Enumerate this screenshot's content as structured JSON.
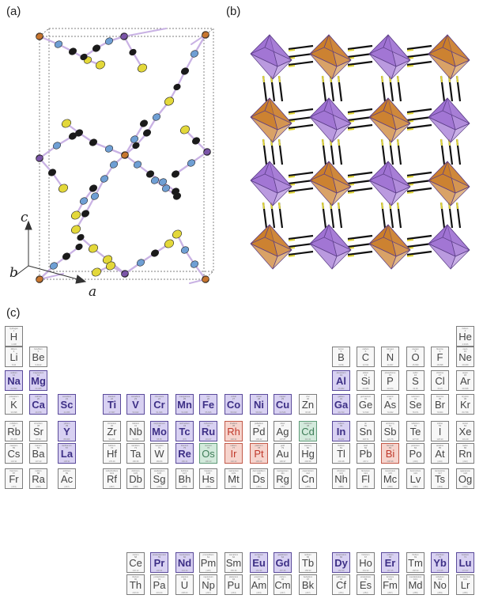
{
  "panels": {
    "a": {
      "label": "(a)",
      "axes": {
        "c": "c",
        "b": "b",
        "a": "a"
      }
    },
    "b": {
      "label": "(b)"
    },
    "c": {
      "label": "(c)"
    }
  },
  "colors": {
    "purple_atom": "#7b55a8",
    "orange_atom": "#c8762f",
    "blue_atom": "#6f9fd4",
    "black_atom": "#1a1a1a",
    "yellow_atom": "#e3d83a",
    "octahedron_purple": "#9d6fd2",
    "octahedron_orange": "#c97b26",
    "highlight": "#d8d1f2",
    "highlight_red": "#f6d4cd",
    "highlight_green": "#d3eadc"
  },
  "periodic_table": {
    "elements": [
      {
        "s": "H",
        "r": 1,
        "c": 1,
        "z": "1",
        "n": "hydrogen",
        "m": "1.008",
        "h": ""
      },
      {
        "s": "He",
        "r": 1,
        "c": 18,
        "z": "2",
        "n": "helium",
        "m": "4.0026",
        "h": ""
      },
      {
        "s": "Li",
        "r": 2,
        "c": 1,
        "z": "3",
        "n": "lithium",
        "m": "6.94",
        "h": ""
      },
      {
        "s": "Be",
        "r": 2,
        "c": 2,
        "z": "4",
        "n": "beryllium",
        "m": "9.0122",
        "h": ""
      },
      {
        "s": "B",
        "r": 2,
        "c": 13,
        "z": "5",
        "n": "boron",
        "m": "10.81",
        "h": ""
      },
      {
        "s": "C",
        "r": 2,
        "c": 14,
        "z": "6",
        "n": "carbon",
        "m": "12.011",
        "h": ""
      },
      {
        "s": "N",
        "r": 2,
        "c": 15,
        "z": "7",
        "n": "nitrogen",
        "m": "14.007",
        "h": ""
      },
      {
        "s": "O",
        "r": 2,
        "c": 16,
        "z": "8",
        "n": "oxygen",
        "m": "15.999",
        "h": ""
      },
      {
        "s": "F",
        "r": 2,
        "c": 17,
        "z": "9",
        "n": "fluorine",
        "m": "18.998",
        "h": ""
      },
      {
        "s": "Ne",
        "r": 2,
        "c": 18,
        "z": "10",
        "n": "neon",
        "m": "20.180",
        "h": ""
      },
      {
        "s": "Na",
        "r": 3,
        "c": 1,
        "z": "11",
        "n": "sodium",
        "m": "22.990",
        "h": "hl"
      },
      {
        "s": "Mg",
        "r": 3,
        "c": 2,
        "z": "12",
        "n": "magnesium",
        "m": "24.305",
        "h": "hl"
      },
      {
        "s": "Al",
        "r": 3,
        "c": 13,
        "z": "13",
        "n": "aluminium",
        "m": "26.982",
        "h": "hl"
      },
      {
        "s": "Si",
        "r": 3,
        "c": 14,
        "z": "14",
        "n": "silicon",
        "m": "28.085",
        "h": ""
      },
      {
        "s": "P",
        "r": 3,
        "c": 15,
        "z": "15",
        "n": "phosphorus",
        "m": "30.974",
        "h": ""
      },
      {
        "s": "S",
        "r": 3,
        "c": 16,
        "z": "16",
        "n": "sulfur",
        "m": "32.06",
        "h": ""
      },
      {
        "s": "Cl",
        "r": 3,
        "c": 17,
        "z": "17",
        "n": "chlorine",
        "m": "35.45",
        "h": ""
      },
      {
        "s": "Ar",
        "r": 3,
        "c": 18,
        "z": "18",
        "n": "argon",
        "m": "39.948",
        "h": ""
      },
      {
        "s": "K",
        "r": 4,
        "c": 1,
        "z": "19",
        "n": "potassium",
        "m": "39.098",
        "h": ""
      },
      {
        "s": "Ca",
        "r": 4,
        "c": 2,
        "z": "20",
        "n": "calcium",
        "m": "40.078",
        "h": "hl"
      },
      {
        "s": "Sc",
        "r": 4,
        "c": 3,
        "z": "21",
        "n": "scandium",
        "m": "44.956",
        "h": "hl"
      },
      {
        "s": "Ti",
        "r": 4,
        "c": 4,
        "z": "22",
        "n": "titanium",
        "m": "47.867",
        "h": "hl"
      },
      {
        "s": "V",
        "r": 4,
        "c": 5,
        "z": "23",
        "n": "vanadium",
        "m": "50.942",
        "h": "hl"
      },
      {
        "s": "Cr",
        "r": 4,
        "c": 6,
        "z": "24",
        "n": "chromium",
        "m": "51.996",
        "h": "hl"
      },
      {
        "s": "Mn",
        "r": 4,
        "c": 7,
        "z": "25",
        "n": "manganese",
        "m": "54.938",
        "h": "hl"
      },
      {
        "s": "Fe",
        "r": 4,
        "c": 8,
        "z": "26",
        "n": "iron",
        "m": "55.845",
        "h": "hl"
      },
      {
        "s": "Co",
        "r": 4,
        "c": 9,
        "z": "27",
        "n": "cobalt",
        "m": "58.933",
        "h": "hl"
      },
      {
        "s": "Ni",
        "r": 4,
        "c": 10,
        "z": "28",
        "n": "nickel",
        "m": "58.693",
        "h": "hl"
      },
      {
        "s": "Cu",
        "r": 4,
        "c": 11,
        "z": "29",
        "n": "copper",
        "m": "63.546",
        "h": "hl"
      },
      {
        "s": "Zn",
        "r": 4,
        "c": 12,
        "z": "30",
        "n": "zinc",
        "m": "65.38",
        "h": ""
      },
      {
        "s": "Ga",
        "r": 4,
        "c": 13,
        "z": "31",
        "n": "gallium",
        "m": "69.723",
        "h": "hl"
      },
      {
        "s": "Ge",
        "r": 4,
        "c": 14,
        "z": "32",
        "n": "germanium",
        "m": "72.630",
        "h": ""
      },
      {
        "s": "As",
        "r": 4,
        "c": 15,
        "z": "33",
        "n": "arsenic",
        "m": "74.922",
        "h": ""
      },
      {
        "s": "Se",
        "r": 4,
        "c": 16,
        "z": "34",
        "n": "selenium",
        "m": "78.971",
        "h": ""
      },
      {
        "s": "Br",
        "r": 4,
        "c": 17,
        "z": "35",
        "n": "bromine",
        "m": "79.904",
        "h": ""
      },
      {
        "s": "Kr",
        "r": 4,
        "c": 18,
        "z": "36",
        "n": "krypton",
        "m": "83.798",
        "h": ""
      },
      {
        "s": "Rb",
        "r": 5,
        "c": 1,
        "z": "37",
        "n": "rubidium",
        "m": "85.468",
        "h": ""
      },
      {
        "s": "Sr",
        "r": 5,
        "c": 2,
        "z": "38",
        "n": "strontium",
        "m": "87.62",
        "h": ""
      },
      {
        "s": "Y",
        "r": 5,
        "c": 3,
        "z": "39",
        "n": "yttrium",
        "m": "88.906",
        "h": "hl"
      },
      {
        "s": "Zr",
        "r": 5,
        "c": 4,
        "z": "40",
        "n": "zirconium",
        "m": "91.224",
        "h": ""
      },
      {
        "s": "Nb",
        "r": 5,
        "c": 5,
        "z": "41",
        "n": "niobium",
        "m": "92.906",
        "h": ""
      },
      {
        "s": "Mo",
        "r": 5,
        "c": 6,
        "z": "42",
        "n": "molybdenum",
        "m": "95.95",
        "h": "hl"
      },
      {
        "s": "Tc",
        "r": 5,
        "c": 7,
        "z": "43",
        "n": "technetium",
        "m": "[97]",
        "h": "hl"
      },
      {
        "s": "Ru",
        "r": 5,
        "c": 8,
        "z": "44",
        "n": "ruthenium",
        "m": "101.07",
        "h": "hl"
      },
      {
        "s": "Rh",
        "r": 5,
        "c": 9,
        "z": "45",
        "n": "rhodium",
        "m": "102.91",
        "h": "red"
      },
      {
        "s": "Pd",
        "r": 5,
        "c": 10,
        "z": "46",
        "n": "palladium",
        "m": "106.42",
        "h": ""
      },
      {
        "s": "Ag",
        "r": 5,
        "c": 11,
        "z": "47",
        "n": "silver",
        "m": "107.87",
        "h": ""
      },
      {
        "s": "Cd",
        "r": 5,
        "c": 12,
        "z": "48",
        "n": "cadmium",
        "m": "112.41",
        "h": "grn"
      },
      {
        "s": "In",
        "r": 5,
        "c": 13,
        "z": "49",
        "n": "indium",
        "m": "114.82",
        "h": "hl"
      },
      {
        "s": "Sn",
        "r": 5,
        "c": 14,
        "z": "50",
        "n": "tin",
        "m": "118.71",
        "h": ""
      },
      {
        "s": "Sb",
        "r": 5,
        "c": 15,
        "z": "51",
        "n": "antimony",
        "m": "121.76",
        "h": ""
      },
      {
        "s": "Te",
        "r": 5,
        "c": 16,
        "z": "52",
        "n": "tellurium",
        "m": "127.60",
        "h": ""
      },
      {
        "s": "I",
        "r": 5,
        "c": 17,
        "z": "53",
        "n": "iodine",
        "m": "126.90",
        "h": ""
      },
      {
        "s": "Xe",
        "r": 5,
        "c": 18,
        "z": "54",
        "n": "xenon",
        "m": "131.29",
        "h": ""
      },
      {
        "s": "Cs",
        "r": 6,
        "c": 1,
        "z": "55",
        "n": "caesium",
        "m": "132.91",
        "h": ""
      },
      {
        "s": "Ba",
        "r": 6,
        "c": 2,
        "z": "56",
        "n": "barium",
        "m": "137.33",
        "h": ""
      },
      {
        "s": "La",
        "r": 6,
        "c": 3,
        "z": "57",
        "n": "lanthanum",
        "m": "138.91",
        "h": "hl"
      },
      {
        "s": "Hf",
        "r": 6,
        "c": 4,
        "z": "72",
        "n": "hafnium",
        "m": "178.49",
        "h": ""
      },
      {
        "s": "Ta",
        "r": 6,
        "c": 5,
        "z": "73",
        "n": "tantalum",
        "m": "180.95",
        "h": ""
      },
      {
        "s": "W",
        "r": 6,
        "c": 6,
        "z": "74",
        "n": "tungsten",
        "m": "183.84",
        "h": ""
      },
      {
        "s": "Re",
        "r": 6,
        "c": 7,
        "z": "75",
        "n": "rhenium",
        "m": "186.21",
        "h": "hl"
      },
      {
        "s": "Os",
        "r": 6,
        "c": 8,
        "z": "76",
        "n": "osmium",
        "m": "190.23",
        "h": "grn"
      },
      {
        "s": "Ir",
        "r": 6,
        "c": 9,
        "z": "77",
        "n": "iridium",
        "m": "192.22",
        "h": "red"
      },
      {
        "s": "Pt",
        "r": 6,
        "c": 10,
        "z": "78",
        "n": "platinum",
        "m": "195.08",
        "h": "red"
      },
      {
        "s": "Au",
        "r": 6,
        "c": 11,
        "z": "79",
        "n": "gold",
        "m": "196.97",
        "h": ""
      },
      {
        "s": "Hg",
        "r": 6,
        "c": 12,
        "z": "80",
        "n": "mercury",
        "m": "200.59",
        "h": ""
      },
      {
        "s": "Tl",
        "r": 6,
        "c": 13,
        "z": "81",
        "n": "thallium",
        "m": "204.38",
        "h": ""
      },
      {
        "s": "Pb",
        "r": 6,
        "c": 14,
        "z": "82",
        "n": "lead",
        "m": "207.2",
        "h": ""
      },
      {
        "s": "Bi",
        "r": 6,
        "c": 15,
        "z": "83",
        "n": "bismuth",
        "m": "208.98",
        "h": "red"
      },
      {
        "s": "Po",
        "r": 6,
        "c": 16,
        "z": "84",
        "n": "polonium",
        "m": "[209]",
        "h": ""
      },
      {
        "s": "At",
        "r": 6,
        "c": 17,
        "z": "85",
        "n": "astatine",
        "m": "[210]",
        "h": ""
      },
      {
        "s": "Rn",
        "r": 6,
        "c": 18,
        "z": "86",
        "n": "radon",
        "m": "[222]",
        "h": ""
      },
      {
        "s": "Fr",
        "r": 7,
        "c": 1,
        "z": "87",
        "n": "francium",
        "m": "[223]",
        "h": ""
      },
      {
        "s": "Ra",
        "r": 7,
        "c": 2,
        "z": "88",
        "n": "radium",
        "m": "[226]",
        "h": ""
      },
      {
        "s": "Ac",
        "r": 7,
        "c": 3,
        "z": "89",
        "n": "actinium",
        "m": "[227]",
        "h": ""
      },
      {
        "s": "Rf",
        "r": 7,
        "c": 4,
        "z": "104",
        "n": "rutherfordium",
        "m": "[267]",
        "h": ""
      },
      {
        "s": "Db",
        "r": 7,
        "c": 5,
        "z": "105",
        "n": "dubnium",
        "m": "[268]",
        "h": ""
      },
      {
        "s": "Sg",
        "r": 7,
        "c": 6,
        "z": "106",
        "n": "seaborgium",
        "m": "[269]",
        "h": ""
      },
      {
        "s": "Bh",
        "r": 7,
        "c": 7,
        "z": "107",
        "n": "bohrium",
        "m": "[270]",
        "h": ""
      },
      {
        "s": "Hs",
        "r": 7,
        "c": 8,
        "z": "108",
        "n": "hassium",
        "m": "[269]",
        "h": ""
      },
      {
        "s": "Mt",
        "r": 7,
        "c": 9,
        "z": "109",
        "n": "meitnerium",
        "m": "[278]",
        "h": ""
      },
      {
        "s": "Ds",
        "r": 7,
        "c": 10,
        "z": "110",
        "n": "darmstadtium",
        "m": "[281]",
        "h": ""
      },
      {
        "s": "Rg",
        "r": 7,
        "c": 11,
        "z": "111",
        "n": "roentgenium",
        "m": "[282]",
        "h": ""
      },
      {
        "s": "Cn",
        "r": 7,
        "c": 12,
        "z": "112",
        "n": "copernicium",
        "m": "[285]",
        "h": ""
      },
      {
        "s": "Nh",
        "r": 7,
        "c": 13,
        "z": "113",
        "n": "nihonium",
        "m": "[286]",
        "h": ""
      },
      {
        "s": "Fl",
        "r": 7,
        "c": 14,
        "z": "114",
        "n": "flerovium",
        "m": "[289]",
        "h": ""
      },
      {
        "s": "Mc",
        "r": 7,
        "c": 15,
        "z": "115",
        "n": "moscovium",
        "m": "[290]",
        "h": ""
      },
      {
        "s": "Lv",
        "r": 7,
        "c": 16,
        "z": "116",
        "n": "livermorium",
        "m": "[293]",
        "h": ""
      },
      {
        "s": "Ts",
        "r": 7,
        "c": 17,
        "z": "117",
        "n": "tennessine",
        "m": "[294]",
        "h": ""
      },
      {
        "s": "Og",
        "r": 7,
        "c": 18,
        "z": "118",
        "n": "oganesson",
        "m": "[294]",
        "h": ""
      },
      {
        "s": "Ce",
        "r": 9,
        "c": 5,
        "z": "58",
        "n": "cerium",
        "m": "140.12",
        "h": ""
      },
      {
        "s": "Pr",
        "r": 9,
        "c": 6,
        "z": "59",
        "n": "praseodymium",
        "m": "140.91",
        "h": "hl"
      },
      {
        "s": "Nd",
        "r": 9,
        "c": 7,
        "z": "60",
        "n": "neodymium",
        "m": "144.24",
        "h": "hl"
      },
      {
        "s": "Pm",
        "r": 9,
        "c": 8,
        "z": "61",
        "n": "promethium",
        "m": "[145]",
        "h": ""
      },
      {
        "s": "Sm",
        "r": 9,
        "c": 9,
        "z": "62",
        "n": "samarium",
        "m": "150.36",
        "h": ""
      },
      {
        "s": "Eu",
        "r": 9,
        "c": 10,
        "z": "63",
        "n": "europium",
        "m": "151.96",
        "h": "hl"
      },
      {
        "s": "Gd",
        "r": 9,
        "c": 11,
        "z": "64",
        "n": "gadolinium",
        "m": "157.25",
        "h": "hl"
      },
      {
        "s": "Tb",
        "r": 9,
        "c": 12,
        "z": "65",
        "n": "terbium",
        "m": "158.93",
        "h": ""
      },
      {
        "s": "Dy",
        "r": 9,
        "c": 13,
        "z": "66",
        "n": "dysprosium",
        "m": "162.50",
        "h": "hl"
      },
      {
        "s": "Ho",
        "r": 9,
        "c": 14,
        "z": "67",
        "n": "holmium",
        "m": "164.93",
        "h": ""
      },
      {
        "s": "Er",
        "r": 9,
        "c": 15,
        "z": "68",
        "n": "erbium",
        "m": "167.26",
        "h": "hl"
      },
      {
        "s": "Tm",
        "r": 9,
        "c": 16,
        "z": "69",
        "n": "thulium",
        "m": "168.93",
        "h": ""
      },
      {
        "s": "Yb",
        "r": 9,
        "c": 17,
        "z": "70",
        "n": "ytterbium",
        "m": "173.05",
        "h": "hl"
      },
      {
        "s": "Lu",
        "r": 9,
        "c": 18,
        "z": "71",
        "n": "lutetium",
        "m": "174.97",
        "h": "hl"
      },
      {
        "s": "Th",
        "r": 10,
        "c": 5,
        "z": "90",
        "n": "thorium",
        "m": "232.04",
        "h": ""
      },
      {
        "s": "Pa",
        "r": 10,
        "c": 6,
        "z": "91",
        "n": "protactinium",
        "m": "231.04",
        "h": ""
      },
      {
        "s": "U",
        "r": 10,
        "c": 7,
        "z": "92",
        "n": "uranium",
        "m": "238.03",
        "h": ""
      },
      {
        "s": "Np",
        "r": 10,
        "c": 8,
        "z": "93",
        "n": "neptunium",
        "m": "[237]",
        "h": ""
      },
      {
        "s": "Pu",
        "r": 10,
        "c": 9,
        "z": "94",
        "n": "plutonium",
        "m": "[244]",
        "h": ""
      },
      {
        "s": "Am",
        "r": 10,
        "c": 10,
        "z": "95",
        "n": "americium",
        "m": "[243]",
        "h": ""
      },
      {
        "s": "Cm",
        "r": 10,
        "c": 11,
        "z": "96",
        "n": "curium",
        "m": "[247]",
        "h": ""
      },
      {
        "s": "Bk",
        "r": 10,
        "c": 12,
        "z": "97",
        "n": "berkelium",
        "m": "[247]",
        "h": ""
      },
      {
        "s": "Cf",
        "r": 10,
        "c": 13,
        "z": "98",
        "n": "californium",
        "m": "[251]",
        "h": ""
      },
      {
        "s": "Es",
        "r": 10,
        "c": 14,
        "z": "99",
        "n": "einsteinium",
        "m": "[252]",
        "h": ""
      },
      {
        "s": "Fm",
        "r": 10,
        "c": 15,
        "z": "100",
        "n": "fermium",
        "m": "[257]",
        "h": ""
      },
      {
        "s": "Md",
        "r": 10,
        "c": 16,
        "z": "101",
        "n": "mendelevium",
        "m": "[258]",
        "h": ""
      },
      {
        "s": "No",
        "r": 10,
        "c": 17,
        "z": "102",
        "n": "nobelium",
        "m": "[259]",
        "h": ""
      },
      {
        "s": "Lr",
        "r": 10,
        "c": 18,
        "z": "103",
        "n": "lawrencium",
        "m": "[266]",
        "h": ""
      }
    ]
  }
}
